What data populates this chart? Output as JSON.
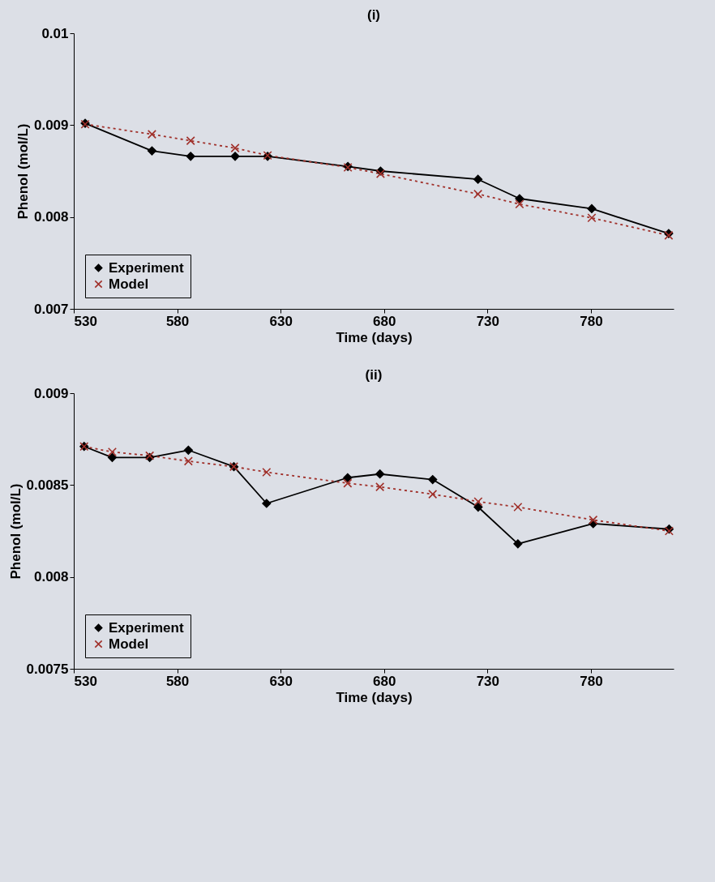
{
  "chart_data": [
    {
      "type": "line",
      "title": "(i)",
      "xlabel": "Time (days)",
      "ylabel": "Phenol (mol/L)",
      "x": [
        535.5,
        567.8,
        586.5,
        608,
        623.7,
        662.5,
        678.3,
        725.4,
        745.5,
        780.4,
        817.6
      ],
      "series": [
        {
          "name": "Experiment",
          "color": "#000000",
          "marker": "diamond",
          "line_style": "solid",
          "values": [
            0.00902,
            0.00872,
            0.00866,
            0.00866,
            0.00866,
            0.00855,
            0.0085,
            0.00841,
            0.0082,
            0.00809,
            0.00782
          ]
        },
        {
          "name": "Model",
          "color": "#a0302a",
          "marker": "cross",
          "line_style": "dotted",
          "values": [
            0.00901,
            0.0089,
            0.00883,
            0.00875,
            0.00867,
            0.00854,
            0.00847,
            0.00825,
            0.00814,
            0.00799,
            0.0078
          ]
        }
      ],
      "xlim": [
        530,
        820
      ],
      "xticks": [
        530,
        580,
        630,
        680,
        730,
        780
      ],
      "ylim": [
        0.007,
        0.01
      ],
      "yticks": [
        0.007,
        0.008,
        0.009,
        0.01
      ],
      "grid": false,
      "legend": "bottom left"
    },
    {
      "type": "line",
      "title": "(ii)",
      "xlabel": "Time (days)",
      "ylabel": "Phenol (mol/L)",
      "x": [
        535,
        548.6,
        566.7,
        585.4,
        607.4,
        623.2,
        662.4,
        678,
        703.5,
        725.5,
        744.7,
        781.1,
        817.8
      ],
      "series": [
        {
          "name": "Experiment",
          "color": "#000000",
          "marker": "diamond",
          "line_style": "solid",
          "values": [
            0.00871,
            0.00865,
            0.00865,
            0.00869,
            0.0086,
            0.0084,
            0.00854,
            0.00856,
            0.00853,
            0.00838,
            0.00818,
            0.00829,
            0.00826
          ]
        },
        {
          "name": "Model",
          "color": "#a0302a",
          "marker": "cross",
          "line_style": "dotted",
          "values": [
            0.00871,
            0.00868,
            0.00866,
            0.00863,
            0.0086,
            0.00857,
            0.00851,
            0.00849,
            0.00845,
            0.00841,
            0.00838,
            0.00831,
            0.00825
          ]
        }
      ],
      "xlim": [
        530,
        820
      ],
      "xticks": [
        530,
        580,
        630,
        680,
        730,
        780
      ],
      "ylim": [
        0.0075,
        0.009
      ],
      "yticks": [
        0.0075,
        0.008,
        0.0085,
        0.009
      ],
      "grid": false,
      "legend": "bottom left"
    }
  ]
}
